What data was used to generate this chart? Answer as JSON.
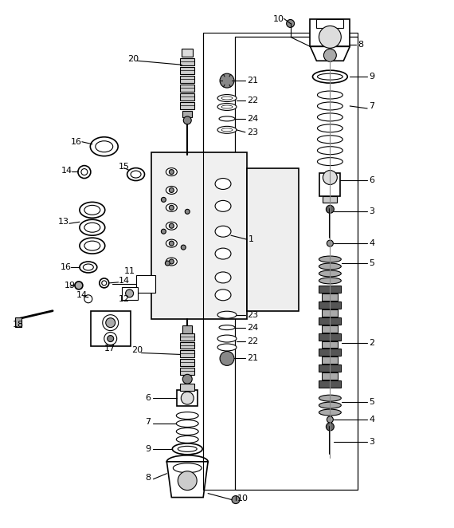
{
  "background_color": "#ffffff",
  "figsize": [
    5.7,
    6.62
  ],
  "dpi": 100
}
